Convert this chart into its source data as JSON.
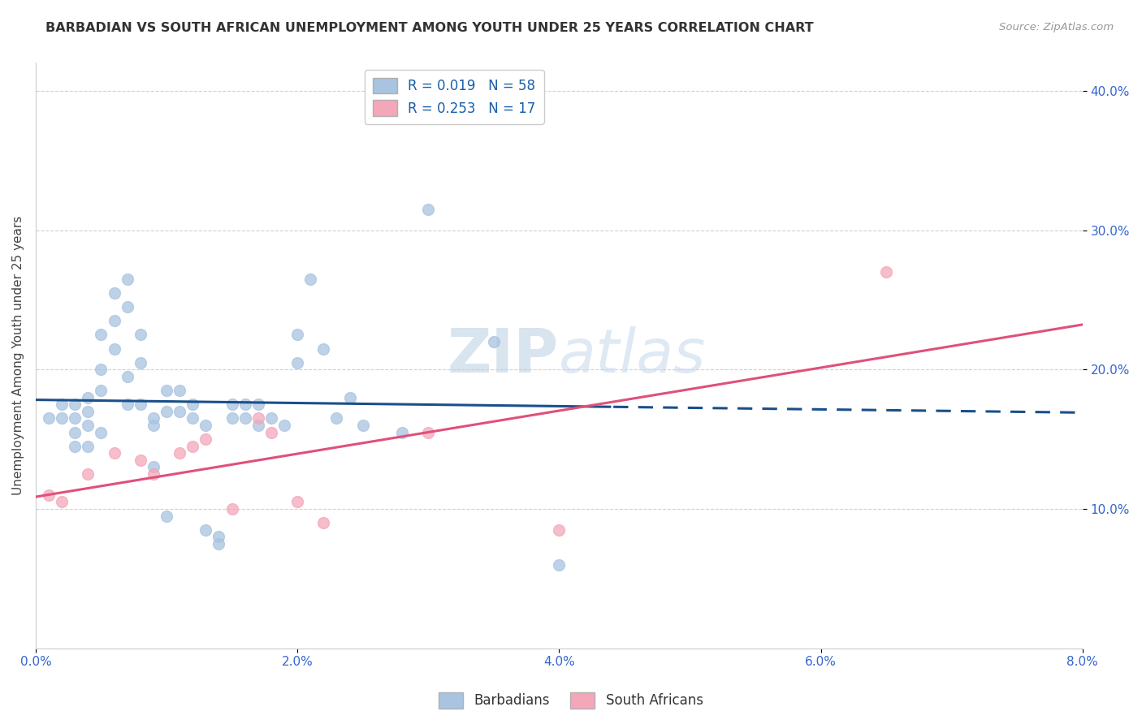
{
  "title": "BARBADIAN VS SOUTH AFRICAN UNEMPLOYMENT AMONG YOUTH UNDER 25 YEARS CORRELATION CHART",
  "source": "Source: ZipAtlas.com",
  "ylabel": "Unemployment Among Youth under 25 years",
  "xlim": [
    0.0,
    0.08
  ],
  "ylim": [
    0.0,
    0.42
  ],
  "xtick_labels": [
    "0.0%",
    "2.0%",
    "4.0%",
    "6.0%",
    "8.0%"
  ],
  "xtick_values": [
    0.0,
    0.02,
    0.04,
    0.06,
    0.08
  ],
  "ytick_labels": [
    "10.0%",
    "20.0%",
    "30.0%",
    "40.0%"
  ],
  "ytick_values": [
    0.1,
    0.2,
    0.3,
    0.4
  ],
  "barbadian_color": "#a8c4e0",
  "southafrican_color": "#f4a7b9",
  "trendline_barbadian_color": "#1a4f8a",
  "trendline_southafrican_color": "#e0507a",
  "barbadian_x": [
    0.001,
    0.002,
    0.002,
    0.003,
    0.003,
    0.003,
    0.003,
    0.004,
    0.004,
    0.004,
    0.004,
    0.005,
    0.005,
    0.005,
    0.005,
    0.006,
    0.006,
    0.006,
    0.007,
    0.007,
    0.007,
    0.007,
    0.008,
    0.008,
    0.008,
    0.009,
    0.009,
    0.009,
    0.01,
    0.01,
    0.01,
    0.011,
    0.011,
    0.012,
    0.012,
    0.013,
    0.013,
    0.014,
    0.014,
    0.015,
    0.015,
    0.016,
    0.016,
    0.017,
    0.017,
    0.018,
    0.019,
    0.02,
    0.02,
    0.021,
    0.022,
    0.023,
    0.024,
    0.025,
    0.028,
    0.03,
    0.035,
    0.04
  ],
  "barbadian_y": [
    0.165,
    0.175,
    0.165,
    0.175,
    0.165,
    0.155,
    0.145,
    0.18,
    0.17,
    0.16,
    0.145,
    0.225,
    0.2,
    0.185,
    0.155,
    0.255,
    0.235,
    0.215,
    0.265,
    0.245,
    0.195,
    0.175,
    0.225,
    0.205,
    0.175,
    0.165,
    0.16,
    0.13,
    0.185,
    0.17,
    0.095,
    0.185,
    0.17,
    0.175,
    0.165,
    0.16,
    0.085,
    0.08,
    0.075,
    0.175,
    0.165,
    0.175,
    0.165,
    0.16,
    0.175,
    0.165,
    0.16,
    0.225,
    0.205,
    0.265,
    0.215,
    0.165,
    0.18,
    0.16,
    0.155,
    0.315,
    0.22,
    0.06
  ],
  "southafrican_x": [
    0.001,
    0.002,
    0.004,
    0.006,
    0.008,
    0.009,
    0.011,
    0.012,
    0.013,
    0.015,
    0.017,
    0.018,
    0.02,
    0.022,
    0.03,
    0.04,
    0.065
  ],
  "southafrican_y": [
    0.11,
    0.105,
    0.125,
    0.14,
    0.135,
    0.125,
    0.14,
    0.145,
    0.15,
    0.1,
    0.165,
    0.155,
    0.105,
    0.09,
    0.155,
    0.085,
    0.27
  ],
  "barbadian_R": 0.019,
  "barbadian_N": 58,
  "southafrican_R": 0.253,
  "southafrican_N": 17,
  "legend_label1": "Barbadians",
  "legend_label2": "South Africans",
  "background_color": "#ffffff",
  "grid_color": "#cccccc",
  "trendline_solid_end_barb": 0.044,
  "trendline_xlim_sa": [
    0.0,
    0.08
  ]
}
